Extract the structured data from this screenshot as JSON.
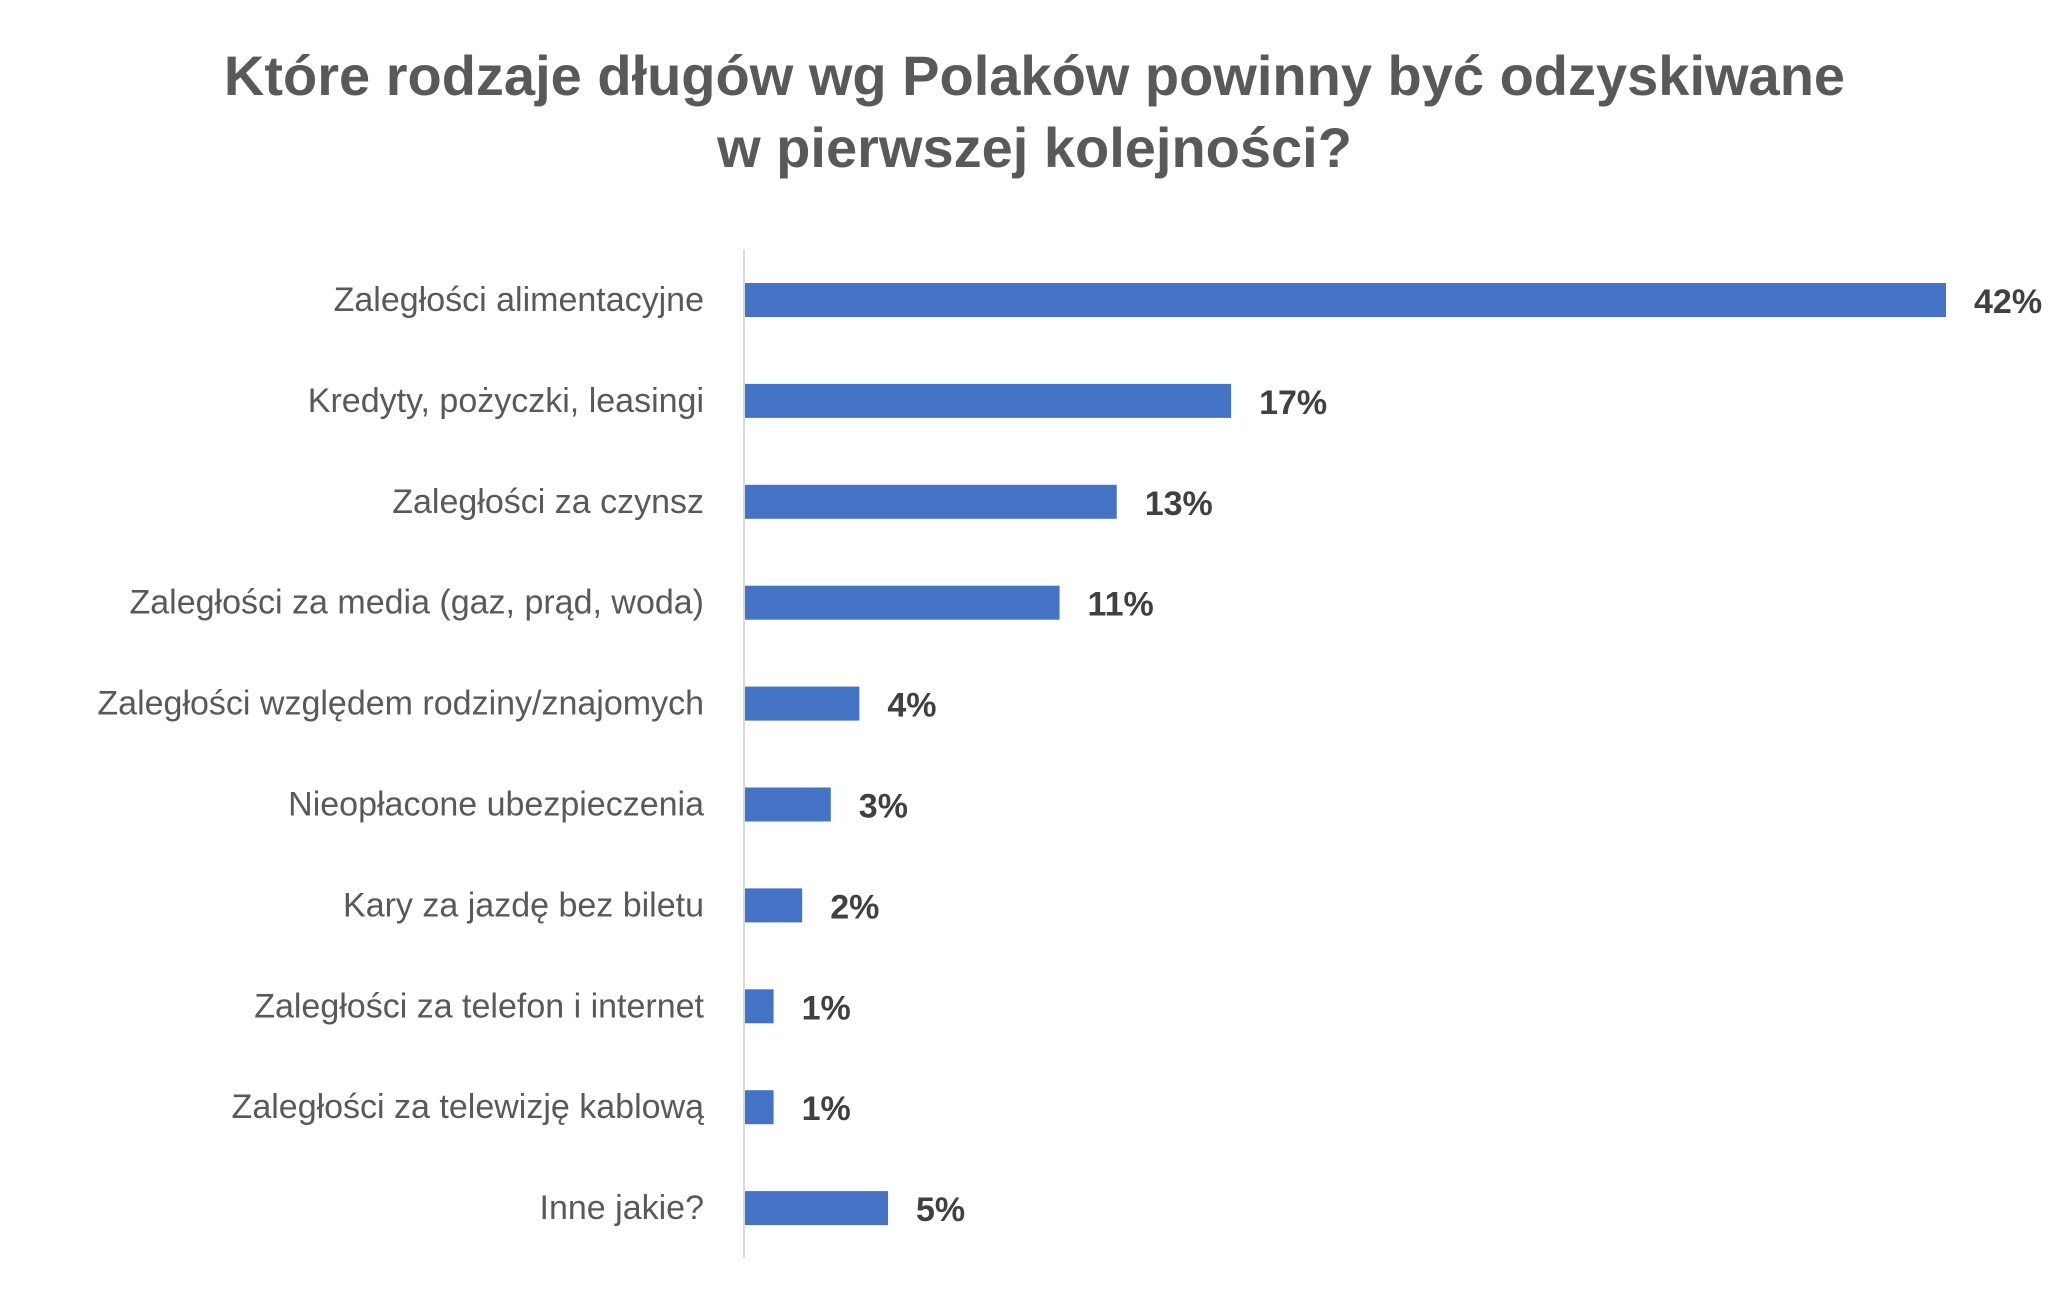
{
  "chart_data": {
    "type": "bar",
    "orientation": "horizontal",
    "title_lines": [
      "Które rodzaje długów wg Polaków powinny być odzyskiwane",
      "w pierwszej kolejności?"
    ],
    "categories": [
      "Zaległości alimentacyjne",
      "Kredyty, pożyczki, leasingi",
      "Zaległości za czynsz",
      "Zaległości za media (gaz, prąd, woda)",
      "Zaległości względem rodziny/znajomych",
      "Nieopłacone ubezpieczenia",
      "Kary za jazdę bez biletu",
      "Zaległości za telefon i internet",
      "Zaległości za telewizję kablową",
      "Inne jakie?"
    ],
    "values": [
      42,
      17,
      13,
      11,
      4,
      3,
      2,
      1,
      1,
      5
    ],
    "data_labels": [
      "42%",
      "17%",
      "13%",
      "11%",
      "4%",
      "3%",
      "2%",
      "1%",
      "1%",
      "5%"
    ],
    "unit": "%",
    "xlim": [
      0,
      42
    ],
    "bar_color": "#4472C4",
    "axis_color": "#D9D9D9",
    "grid": false,
    "legend": "none"
  }
}
